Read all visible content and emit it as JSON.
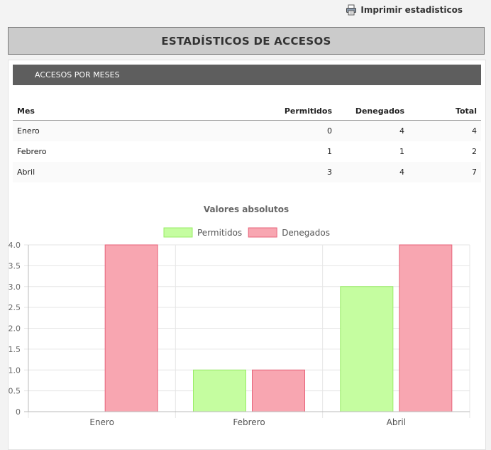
{
  "print": {
    "label": "Imprimir estadisticos",
    "icon": "printer-icon"
  },
  "page_title": "ESTADÍSTICOS DE ACCESOS",
  "section": {
    "title": "ACCESOS POR MESES"
  },
  "table": {
    "headers": [
      "Mes",
      "Permitidos",
      "Denegados",
      "Total"
    ],
    "rows": [
      [
        "Enero",
        "0",
        "4",
        "4"
      ],
      [
        "Febrero",
        "1",
        "1",
        "2"
      ],
      [
        "Abril",
        "3",
        "4",
        "7"
      ]
    ]
  },
  "chart_data": {
    "type": "bar",
    "title": "Valores absolutos",
    "categories": [
      "Enero",
      "Febrero",
      "Abril"
    ],
    "series": [
      {
        "name": "Permitidos",
        "values": [
          0,
          1,
          3
        ],
        "fill": "#c5fda0",
        "stroke": "#98ec66"
      },
      {
        "name": "Denegados",
        "values": [
          4,
          1,
          4
        ],
        "fill": "#f8a6b1",
        "stroke": "#e7637a"
      }
    ],
    "ylim": [
      0,
      4
    ],
    "yticks": [
      "0",
      "0.5",
      "1.0",
      "1.5",
      "2.0",
      "2.5",
      "3.0",
      "3.5",
      "4.0"
    ],
    "legend": "top",
    "grid": true
  }
}
